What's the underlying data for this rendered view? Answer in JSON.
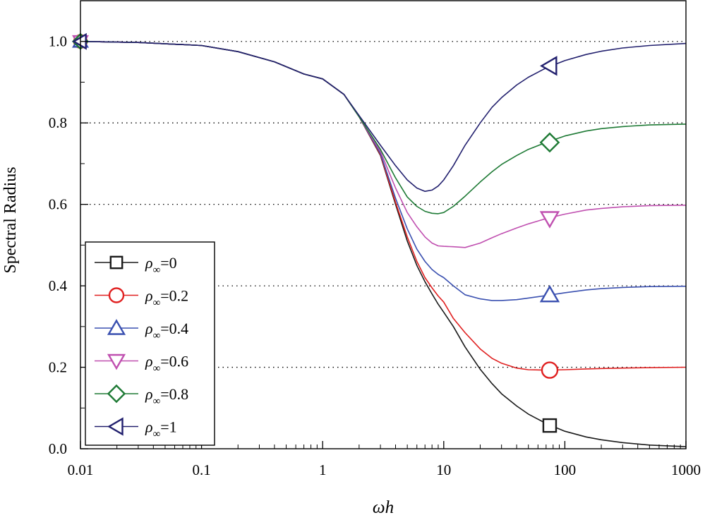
{
  "chart_data": {
    "type": "line",
    "title": "",
    "xlabel": "ωh",
    "ylabel": "Spectral Radius",
    "xscale": "log",
    "xlim": [
      0.01,
      1000
    ],
    "ylim": [
      0.0,
      1.1
    ],
    "xticks": [
      0.01,
      0.1,
      1,
      10,
      100,
      1000
    ],
    "xtick_labels": [
      "0.01",
      "0.1",
      "1",
      "10",
      "100",
      "1000"
    ],
    "yticks": [
      0.0,
      0.2,
      0.4,
      0.6,
      0.8,
      1.0
    ],
    "ytick_labels": [
      "0.0",
      "0.2",
      "0.4",
      "0.6",
      "0.8",
      "1.0"
    ],
    "gridlines": "horizontal dotted at 0.2, 0.4, 0.6, 0.8, 1.0",
    "legend_position": "bottom-left",
    "x": [
      0.01,
      0.03,
      0.1,
      0.2,
      0.4,
      0.7,
      1,
      1.5,
      2,
      3,
      4,
      5,
      6,
      7,
      8,
      9,
      10,
      12,
      15,
      20,
      25,
      30,
      40,
      50,
      70,
      100,
      150,
      200,
      300,
      500,
      1000
    ],
    "series": [
      {
        "name": "ρ∞=0",
        "greek": "ρ",
        "sub": "∞",
        "suffix": "=0",
        "color": "#1a1a1a",
        "marker": "square",
        "marker_x": 75,
        "marker_y": 0.057,
        "values": [
          1.0,
          0.9975,
          0.99,
          0.975,
          0.95,
          0.92,
          0.908,
          0.87,
          0.815,
          0.72,
          0.6,
          0.51,
          0.45,
          0.41,
          0.38,
          0.355,
          0.335,
          0.3,
          0.25,
          0.195,
          0.16,
          0.135,
          0.105,
          0.085,
          0.062,
          0.043,
          0.029,
          0.022,
          0.015,
          0.009,
          0.005
        ]
      },
      {
        "name": "ρ∞=0.2",
        "greek": "ρ",
        "sub": "∞",
        "suffix": "=0.2",
        "color": "#e02020",
        "marker": "circle",
        "marker_x": 75,
        "marker_y": 0.193,
        "values": [
          1.0,
          0.9975,
          0.99,
          0.975,
          0.95,
          0.92,
          0.908,
          0.87,
          0.815,
          0.722,
          0.605,
          0.52,
          0.46,
          0.42,
          0.395,
          0.375,
          0.36,
          0.32,
          0.285,
          0.245,
          0.222,
          0.21,
          0.198,
          0.194,
          0.193,
          0.194,
          0.196,
          0.197,
          0.198,
          0.199,
          0.2
        ]
      },
      {
        "name": "ρ∞=0.4",
        "greek": "ρ",
        "sub": "∞",
        "suffix": "=0.4",
        "color": "#3a50b0",
        "marker": "triangle-up",
        "marker_x": 75,
        "marker_y": 0.378,
        "values": [
          1.0,
          0.9975,
          0.99,
          0.975,
          0.95,
          0.92,
          0.908,
          0.87,
          0.815,
          0.725,
          0.615,
          0.54,
          0.49,
          0.46,
          0.44,
          0.428,
          0.42,
          0.4,
          0.378,
          0.368,
          0.364,
          0.364,
          0.366,
          0.37,
          0.376,
          0.383,
          0.39,
          0.393,
          0.396,
          0.398,
          0.399
        ]
      },
      {
        "name": "ρ∞=0.6",
        "greek": "ρ",
        "sub": "∞",
        "suffix": "=0.6",
        "color": "#c050b0",
        "marker": "triangle-down",
        "marker_x": 75,
        "marker_y": 0.565,
        "values": [
          1.0,
          0.9975,
          0.99,
          0.975,
          0.95,
          0.92,
          0.908,
          0.87,
          0.815,
          0.73,
          0.64,
          0.58,
          0.545,
          0.52,
          0.505,
          0.498,
          0.497,
          0.496,
          0.494,
          0.505,
          0.518,
          0.528,
          0.542,
          0.552,
          0.565,
          0.576,
          0.586,
          0.59,
          0.594,
          0.597,
          0.598
        ]
      },
      {
        "name": "ρ∞=0.8",
        "greek": "ρ",
        "sub": "∞",
        "suffix": "=0.8",
        "color": "#1e7a35",
        "marker": "diamond",
        "marker_x": 75,
        "marker_y": 0.752,
        "values": [
          1.0,
          0.9975,
          0.99,
          0.975,
          0.95,
          0.92,
          0.908,
          0.87,
          0.815,
          0.735,
          0.665,
          0.618,
          0.595,
          0.583,
          0.578,
          0.577,
          0.58,
          0.595,
          0.62,
          0.655,
          0.68,
          0.698,
          0.72,
          0.735,
          0.752,
          0.768,
          0.78,
          0.786,
          0.791,
          0.795,
          0.797
        ]
      },
      {
        "name": "ρ∞=1",
        "greek": "ρ",
        "sub": "∞",
        "suffix": "=1",
        "color": "#22206e",
        "marker": "triangle-left",
        "marker_x": 75,
        "marker_y": 0.94,
        "values": [
          1.0,
          0.9975,
          0.99,
          0.975,
          0.95,
          0.92,
          0.908,
          0.87,
          0.818,
          0.745,
          0.695,
          0.66,
          0.64,
          0.632,
          0.635,
          0.645,
          0.66,
          0.695,
          0.745,
          0.8,
          0.838,
          0.862,
          0.893,
          0.912,
          0.935,
          0.953,
          0.968,
          0.976,
          0.984,
          0.99,
          0.995
        ]
      }
    ]
  }
}
